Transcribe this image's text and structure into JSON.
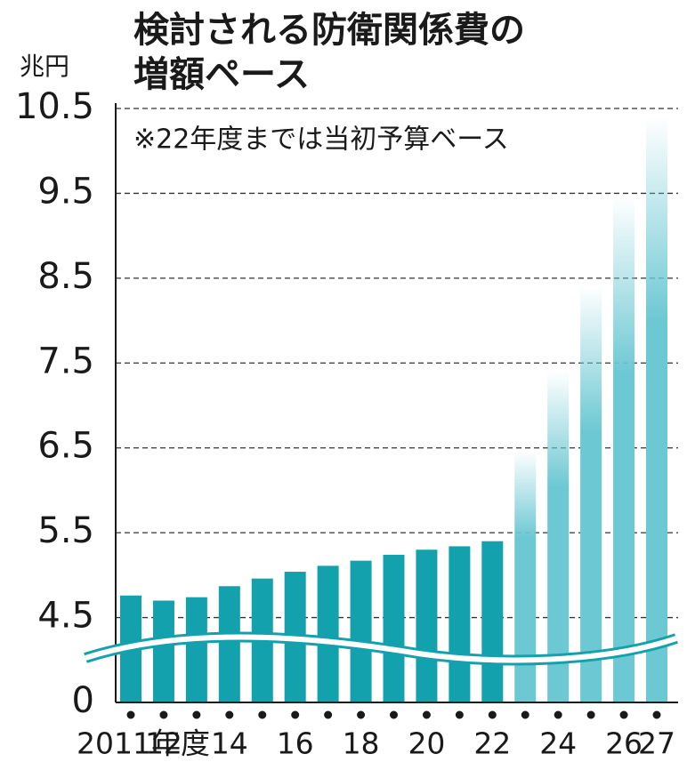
{
  "chart_data": {
    "type": "bar",
    "title": [
      "検討される防衛関係費の",
      "増額ペース"
    ],
    "y_label": "兆円",
    "annotation": "※22年度までは当初予算ベース",
    "categories": [
      "2011年度",
      "12",
      null,
      "14",
      null,
      "16",
      null,
      "18",
      null,
      "20",
      null,
      "22",
      null,
      "24",
      null,
      "26",
      "27"
    ],
    "series": [
      {
        "color": "#14a1ae",
        "values": [
          4.76,
          4.7,
          4.74,
          4.87,
          4.96,
          5.04,
          5.11,
          5.17,
          5.24,
          5.3,
          5.34,
          5.4,
          null,
          null,
          null,
          null,
          null
        ]
      },
      {
        "color": "#6cc8d3",
        "values": [
          null,
          null,
          null,
          null,
          null,
          null,
          null,
          null,
          null,
          null,
          null,
          null,
          6.47,
          7.4,
          8.4,
          9.45,
          10.4
        ]
      }
    ],
    "ylim": [
      0,
      10.5
    ],
    "yticks": [
      0,
      4.5,
      5.5,
      6.5,
      7.5,
      8.5,
      9.5,
      10.5
    ],
    "grid": true
  }
}
